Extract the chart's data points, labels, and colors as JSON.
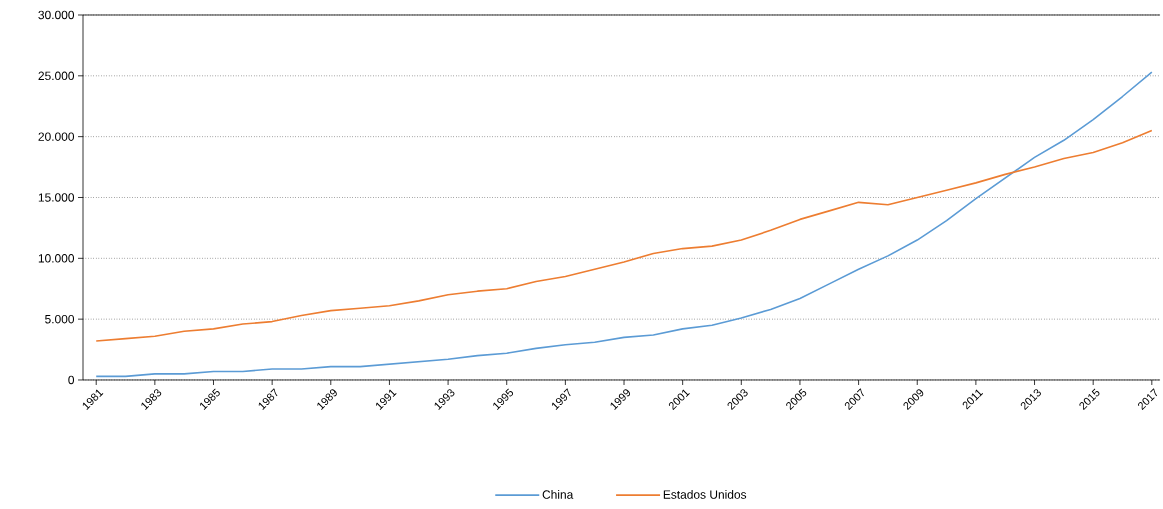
{
  "chart_data": {
    "type": "line",
    "categories": [
      "1981",
      null,
      "1983",
      null,
      "1985",
      null,
      "1987",
      null,
      "1989",
      null,
      "1991",
      null,
      "1993",
      null,
      "1995",
      null,
      "1997",
      null,
      "1999",
      null,
      "2001",
      null,
      "2003",
      null,
      "2005",
      null,
      "2007",
      null,
      "2009",
      null,
      "2011",
      null,
      "2013",
      null,
      "2015",
      null,
      "2017"
    ],
    "series": [
      {
        "name": "China",
        "color": "#5b9bd5",
        "values": [
          300,
          300,
          500,
          500,
          700,
          700,
          900,
          900,
          1100,
          1100,
          1300,
          1500,
          1700,
          2000,
          2200,
          2600,
          2900,
          3100,
          3500,
          3700,
          4200,
          4500,
          5100,
          5800,
          6700,
          7900,
          9100,
          10200,
          11500,
          13100,
          14900,
          16600,
          18300,
          19700,
          21400,
          23300,
          25300
        ]
      },
      {
        "name": "Estados Unidos",
        "color": "#ed7d31",
        "values": [
          3200,
          3400,
          3600,
          4000,
          4200,
          4600,
          4800,
          5300,
          5700,
          5900,
          6100,
          6500,
          7000,
          7300,
          7500,
          8100,
          8500,
          9100,
          9700,
          10400,
          10800,
          11000,
          11500,
          12300,
          13200,
          13900,
          14600,
          14400,
          15000,
          15600,
          16200,
          16900,
          17500,
          18200,
          18700,
          19500,
          20500
        ]
      }
    ],
    "ylim": [
      0,
      30000
    ],
    "yticks": [
      {
        "value": 0,
        "label": "0"
      },
      {
        "value": 5000,
        "label": "5.000"
      },
      {
        "value": 10000,
        "label": "10.000"
      },
      {
        "value": 15000,
        "label": "15.000"
      },
      {
        "value": 20000,
        "label": "20.000"
      },
      {
        "value": 25000,
        "label": "25.000"
      },
      {
        "value": 30000,
        "label": "30.000"
      }
    ],
    "grid": "y",
    "legend": "bottom",
    "marker": "none",
    "line_style": "solid"
  }
}
